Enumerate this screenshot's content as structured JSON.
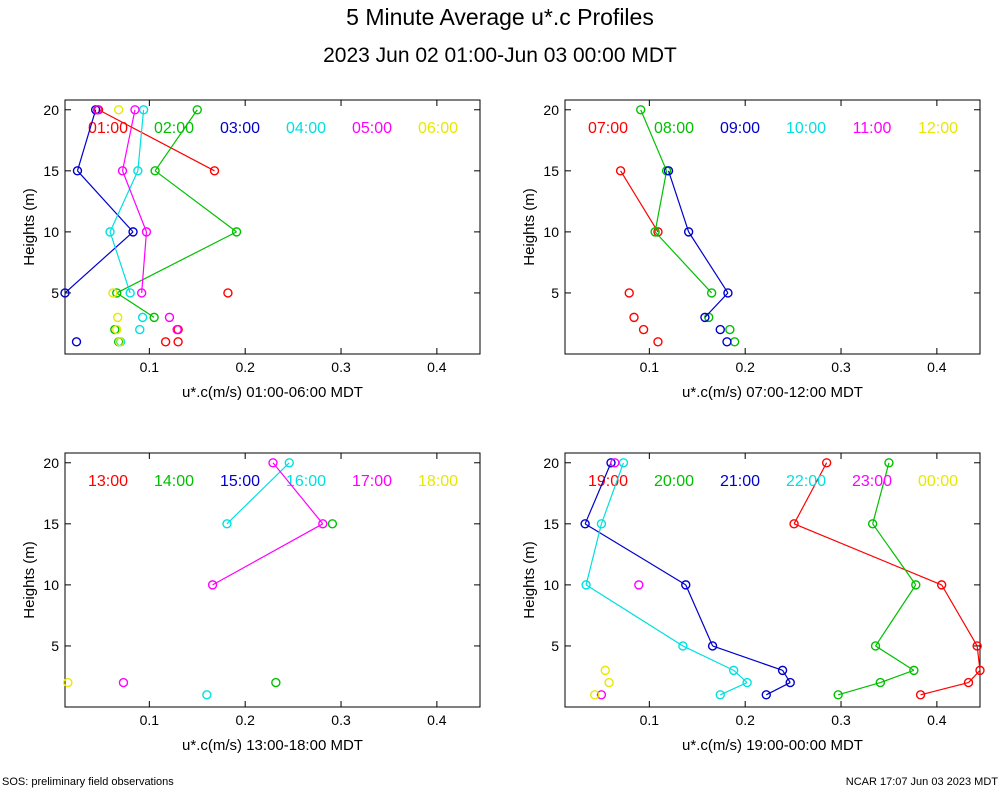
{
  "title": "5 Minute Average u*.c Profiles",
  "subtitle": "2023 Jun 02 01:00-Jun 03 00:00 MDT",
  "footer_left": "SOS: preliminary field observations",
  "footer_right": "NCAR 17:07 Jun 03 2023 MDT",
  "colors": {
    "red": "#ff0000",
    "green": "#00c000",
    "blue": "#0000cc",
    "cyan": "#00e0e0",
    "magenta": "#ff00ff",
    "yellow": "#e8e800"
  },
  "chart_data": [
    {
      "type": "line",
      "xlabel": "u*.c(m/s) 01:00-06:00 MDT",
      "ylabel": "Heights (m)",
      "xlim": [
        0.012,
        0.445
      ],
      "ylim": [
        0,
        20.8
      ],
      "xticks": [
        0.1,
        0.2,
        0.3,
        0.4
      ],
      "xtick_labels": [
        "0.1",
        "0.2",
        "0.3",
        "0.4"
      ],
      "yticks": [
        5,
        10,
        15,
        20
      ],
      "ytick_labels": [
        "5",
        "10",
        "15",
        "20"
      ],
      "series": [
        {
          "name": "01:00",
          "color": "red",
          "points": [
            [
              0.047,
              20
            ],
            [
              0.168,
              15
            ],
            [
              0.182,
              5
            ],
            [
              0.13,
              2
            ],
            [
              0.13,
              1
            ],
            [
              0.117,
              1
            ]
          ],
          "connected": [
            [
              0,
              1
            ]
          ]
        },
        {
          "name": "02:00",
          "color": "green",
          "points": [
            [
              0.15,
              20
            ],
            [
              0.106,
              15
            ],
            [
              0.191,
              10
            ],
            [
              0.066,
              5
            ],
            [
              0.105,
              3
            ],
            [
              0.064,
              2
            ],
            [
              0.068,
              1
            ]
          ],
          "connected": [
            [
              0,
              1
            ],
            [
              1,
              2
            ],
            [
              2,
              3
            ],
            [
              3,
              4
            ]
          ]
        },
        {
          "name": "03:00",
          "color": "blue",
          "points": [
            [
              0.044,
              20
            ],
            [
              0.025,
              15
            ],
            [
              0.083,
              10
            ],
            [
              0.012,
              5
            ],
            [
              0.024,
              1
            ]
          ],
          "connected": [
            [
              0,
              1
            ],
            [
              1,
              2
            ],
            [
              2,
              3
            ]
          ]
        },
        {
          "name": "04:00",
          "color": "cyan",
          "points": [
            [
              0.094,
              20
            ],
            [
              0.088,
              15
            ],
            [
              0.059,
              10
            ],
            [
              0.08,
              5
            ],
            [
              0.093,
              3
            ],
            [
              0.09,
              2
            ],
            [
              0.07,
              1
            ]
          ],
          "connected": [
            [
              0,
              1
            ],
            [
              1,
              2
            ],
            [
              2,
              3
            ]
          ]
        },
        {
          "name": "05:00",
          "color": "magenta",
          "points": [
            [
              0.046,
              20
            ],
            [
              0.085,
              20
            ],
            [
              0.072,
              15
            ],
            [
              0.097,
              10
            ],
            [
              0.092,
              5
            ],
            [
              0.121,
              3
            ],
            [
              0.129,
              2
            ]
          ],
          "connected": [
            [
              1,
              2
            ],
            [
              2,
              3
            ],
            [
              3,
              4
            ]
          ]
        },
        {
          "name": "06:00",
          "color": "yellow",
          "points": [
            [
              0.068,
              20
            ],
            [
              0.062,
              5
            ],
            [
              0.067,
              3
            ],
            [
              0.066,
              2
            ],
            [
              0.069,
              1
            ]
          ],
          "connected": []
        }
      ]
    },
    {
      "type": "line",
      "xlabel": "u*.c(m/s) 07:00-12:00 MDT",
      "ylabel": "Heights (m)",
      "xlim": [
        0.012,
        0.445
      ],
      "ylim": [
        0,
        20.8
      ],
      "xticks": [
        0.1,
        0.2,
        0.3,
        0.4
      ],
      "xtick_labels": [
        "0.1",
        "0.2",
        "0.3",
        "0.4"
      ],
      "yticks": [
        5,
        10,
        15,
        20
      ],
      "ytick_labels": [
        "5",
        "10",
        "15",
        "20"
      ],
      "series": [
        {
          "name": "07:00",
          "color": "red",
          "points": [
            [
              0.07,
              15
            ],
            [
              0.109,
              10
            ],
            [
              0.079,
              5
            ],
            [
              0.084,
              3
            ],
            [
              0.094,
              2
            ],
            [
              0.109,
              1
            ]
          ],
          "connected": [
            [
              0,
              1
            ]
          ]
        },
        {
          "name": "08:00",
          "color": "green",
          "points": [
            [
              0.091,
              20
            ],
            [
              0.118,
              15
            ],
            [
              0.106,
              10
            ],
            [
              0.165,
              5
            ],
            [
              0.162,
              3
            ],
            [
              0.184,
              2
            ],
            [
              0.189,
              1
            ]
          ],
          "connected": [
            [
              0,
              1
            ],
            [
              1,
              2
            ],
            [
              2,
              3
            ]
          ]
        },
        {
          "name": "09:00",
          "color": "blue",
          "points": [
            [
              0.12,
              15
            ],
            [
              0.141,
              10
            ],
            [
              0.182,
              5
            ],
            [
              0.158,
              3
            ],
            [
              0.174,
              2
            ],
            [
              0.181,
              1
            ]
          ],
          "connected": [
            [
              0,
              1
            ],
            [
              1,
              2
            ],
            [
              2,
              3
            ]
          ]
        },
        {
          "name": "10:00",
          "color": "cyan",
          "points": [],
          "connected": []
        },
        {
          "name": "11:00",
          "color": "magenta",
          "points": [],
          "connected": []
        },
        {
          "name": "12:00",
          "color": "yellow",
          "points": [],
          "connected": []
        }
      ]
    },
    {
      "type": "line",
      "xlabel": "u*.c(m/s) 13:00-18:00 MDT",
      "ylabel": "Heights (m)",
      "xlim": [
        0.012,
        0.445
      ],
      "ylim": [
        0,
        20.8
      ],
      "xticks": [
        0.1,
        0.2,
        0.3,
        0.4
      ],
      "xtick_labels": [
        "0.1",
        "0.2",
        "0.3",
        "0.4"
      ],
      "yticks": [
        5,
        10,
        15,
        20
      ],
      "ytick_labels": [
        "5",
        "10",
        "15",
        "20"
      ],
      "series": [
        {
          "name": "13:00",
          "color": "red",
          "points": [],
          "connected": []
        },
        {
          "name": "14:00",
          "color": "green",
          "points": [
            [
              0.291,
              15
            ],
            [
              0.232,
              2
            ]
          ],
          "connected": []
        },
        {
          "name": "15:00",
          "color": "blue",
          "points": [],
          "connected": []
        },
        {
          "name": "16:00",
          "color": "cyan",
          "points": [
            [
              0.246,
              20
            ],
            [
              0.181,
              15
            ],
            [
              0.16,
              1
            ]
          ],
          "connected": [
            [
              0,
              1
            ]
          ]
        },
        {
          "name": "17:00",
          "color": "magenta",
          "points": [
            [
              0.229,
              20
            ],
            [
              0.281,
              15
            ],
            [
              0.166,
              10
            ],
            [
              0.073,
              2
            ]
          ],
          "connected": [
            [
              0,
              1
            ],
            [
              1,
              2
            ]
          ]
        },
        {
          "name": "18:00",
          "color": "yellow",
          "points": [
            [
              0.015,
              2
            ]
          ],
          "connected": []
        }
      ]
    },
    {
      "type": "line",
      "xlabel": "u*.c(m/s) 19:00-00:00 MDT",
      "ylabel": "Heights (m)",
      "xlim": [
        0.012,
        0.445
      ],
      "ylim": [
        0,
        20.8
      ],
      "xticks": [
        0.1,
        0.2,
        0.3,
        0.4
      ],
      "xtick_labels": [
        "0.1",
        "0.2",
        "0.3",
        "0.4"
      ],
      "yticks": [
        5,
        10,
        15,
        20
      ],
      "ytick_labels": [
        "5",
        "10",
        "15",
        "20"
      ],
      "series": [
        {
          "name": "19:00",
          "color": "red",
          "points": [
            [
              0.285,
              20
            ],
            [
              0.251,
              15
            ],
            [
              0.405,
              10
            ],
            [
              0.442,
              5
            ],
            [
              0.445,
              3
            ],
            [
              0.433,
              2
            ],
            [
              0.383,
              1
            ]
          ],
          "connected": [
            [
              0,
              1
            ],
            [
              1,
              2
            ],
            [
              2,
              3
            ],
            [
              3,
              4
            ],
            [
              4,
              5
            ],
            [
              5,
              6
            ]
          ]
        },
        {
          "name": "20:00",
          "color": "green",
          "points": [
            [
              0.35,
              20
            ],
            [
              0.333,
              15
            ],
            [
              0.378,
              10
            ],
            [
              0.336,
              5
            ],
            [
              0.376,
              3
            ],
            [
              0.341,
              2
            ],
            [
              0.297,
              1
            ]
          ],
          "connected": [
            [
              0,
              1
            ],
            [
              1,
              2
            ],
            [
              2,
              3
            ],
            [
              3,
              4
            ],
            [
              4,
              5
            ],
            [
              5,
              6
            ]
          ]
        },
        {
          "name": "21:00",
          "color": "blue",
          "points": [
            [
              0.06,
              20
            ],
            [
              0.033,
              15
            ],
            [
              0.138,
              10
            ],
            [
              0.166,
              5
            ],
            [
              0.239,
              3
            ],
            [
              0.247,
              2
            ],
            [
              0.222,
              1
            ]
          ],
          "connected": [
            [
              0,
              1
            ],
            [
              1,
              2
            ],
            [
              2,
              3
            ],
            [
              3,
              4
            ],
            [
              4,
              5
            ],
            [
              5,
              6
            ]
          ]
        },
        {
          "name": "22:00",
          "color": "cyan",
          "points": [
            [
              0.073,
              20
            ],
            [
              0.05,
              15
            ],
            [
              0.034,
              10
            ],
            [
              0.135,
              5
            ],
            [
              0.188,
              3
            ],
            [
              0.202,
              2
            ],
            [
              0.174,
              1
            ]
          ],
          "connected": [
            [
              0,
              1
            ],
            [
              1,
              2
            ],
            [
              2,
              3
            ],
            [
              3,
              4
            ],
            [
              4,
              5
            ],
            [
              5,
              6
            ]
          ]
        },
        {
          "name": "23:00",
          "color": "magenta",
          "points": [
            [
              0.064,
              20
            ],
            [
              0.089,
              10
            ],
            [
              0.05,
              1
            ]
          ],
          "connected": []
        },
        {
          "name": "00:00",
          "color": "yellow",
          "points": [
            [
              0.054,
              3
            ],
            [
              0.058,
              2
            ],
            [
              0.043,
              1
            ]
          ],
          "connected": []
        }
      ]
    }
  ]
}
